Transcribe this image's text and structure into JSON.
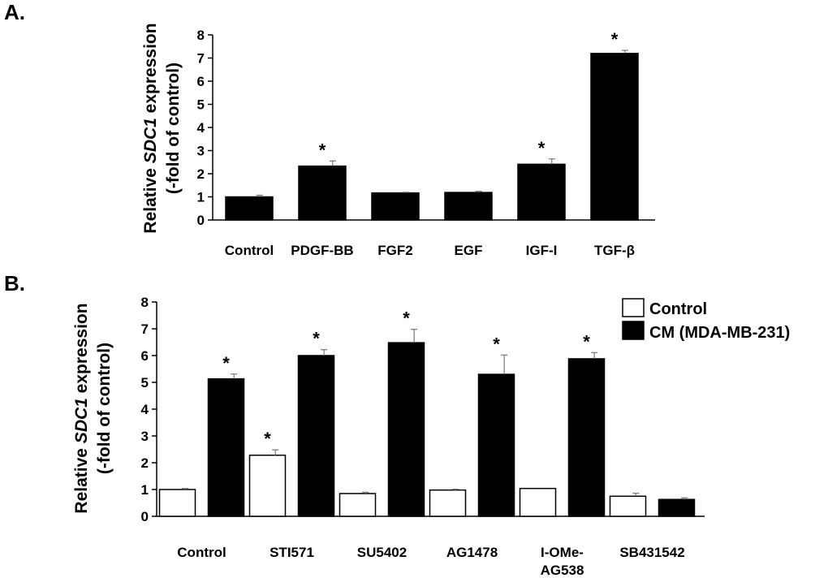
{
  "chart_data": [
    {
      "panel": "A.",
      "type": "bar",
      "categories": [
        "Control",
        "PDGF-BB",
        "FGF2",
        "EGF",
        "IGF-I",
        "TGF-β"
      ],
      "series": [
        {
          "name": "",
          "color": "#000000",
          "values": [
            1.0,
            2.33,
            1.17,
            1.19,
            2.41,
            7.2
          ],
          "errors": [
            0.07,
            0.22,
            0.03,
            0.05,
            0.23,
            0.13
          ],
          "significant": [
            false,
            true,
            false,
            false,
            true,
            true
          ]
        }
      ],
      "ylabel_parts": [
        "Relative ",
        "SDC1",
        " expression"
      ],
      "ylabel_line2": "(-fold of control)",
      "ylim": [
        0,
        8
      ],
      "yticks": [
        "0",
        "1",
        "2",
        "3",
        "4",
        "5",
        "6",
        "7",
        "8"
      ],
      "significance_marker": "*",
      "legend": null
    },
    {
      "panel": "B.",
      "type": "bar",
      "categories": [
        "Control",
        "STI571",
        "SU5402",
        "AG1478",
        "I-OMe-\nAG538",
        "SB431542"
      ],
      "series": [
        {
          "name": "Control",
          "color": "#ffffff",
          "values": [
            1.0,
            2.28,
            0.85,
            0.98,
            1.04,
            0.75
          ],
          "errors": [
            0.04,
            0.2,
            0.05,
            0.03,
            0.0,
            0.11
          ],
          "significant": [
            false,
            true,
            false,
            false,
            false,
            false
          ]
        },
        {
          "name": "CM (MDA-MB-231)",
          "color": "#000000",
          "values": [
            5.13,
            6.0,
            6.48,
            5.3,
            5.88,
            0.63
          ],
          "errors": [
            0.18,
            0.22,
            0.5,
            0.72,
            0.23,
            0.06
          ],
          "significant": [
            true,
            true,
            true,
            true,
            true,
            false
          ]
        }
      ],
      "ylabel_parts": [
        "Relative ",
        "SDC1",
        " expression"
      ],
      "ylabel_line2": "(-fold of control)",
      "ylim": [
        0,
        8
      ],
      "yticks": [
        "0",
        "1",
        "2",
        "3",
        "4",
        "5",
        "6",
        "7",
        "8"
      ],
      "significance_marker": "*",
      "legend": {
        "items": [
          "Control",
          "CM (MDA-MB-231)"
        ],
        "placement": "top-right"
      }
    }
  ]
}
